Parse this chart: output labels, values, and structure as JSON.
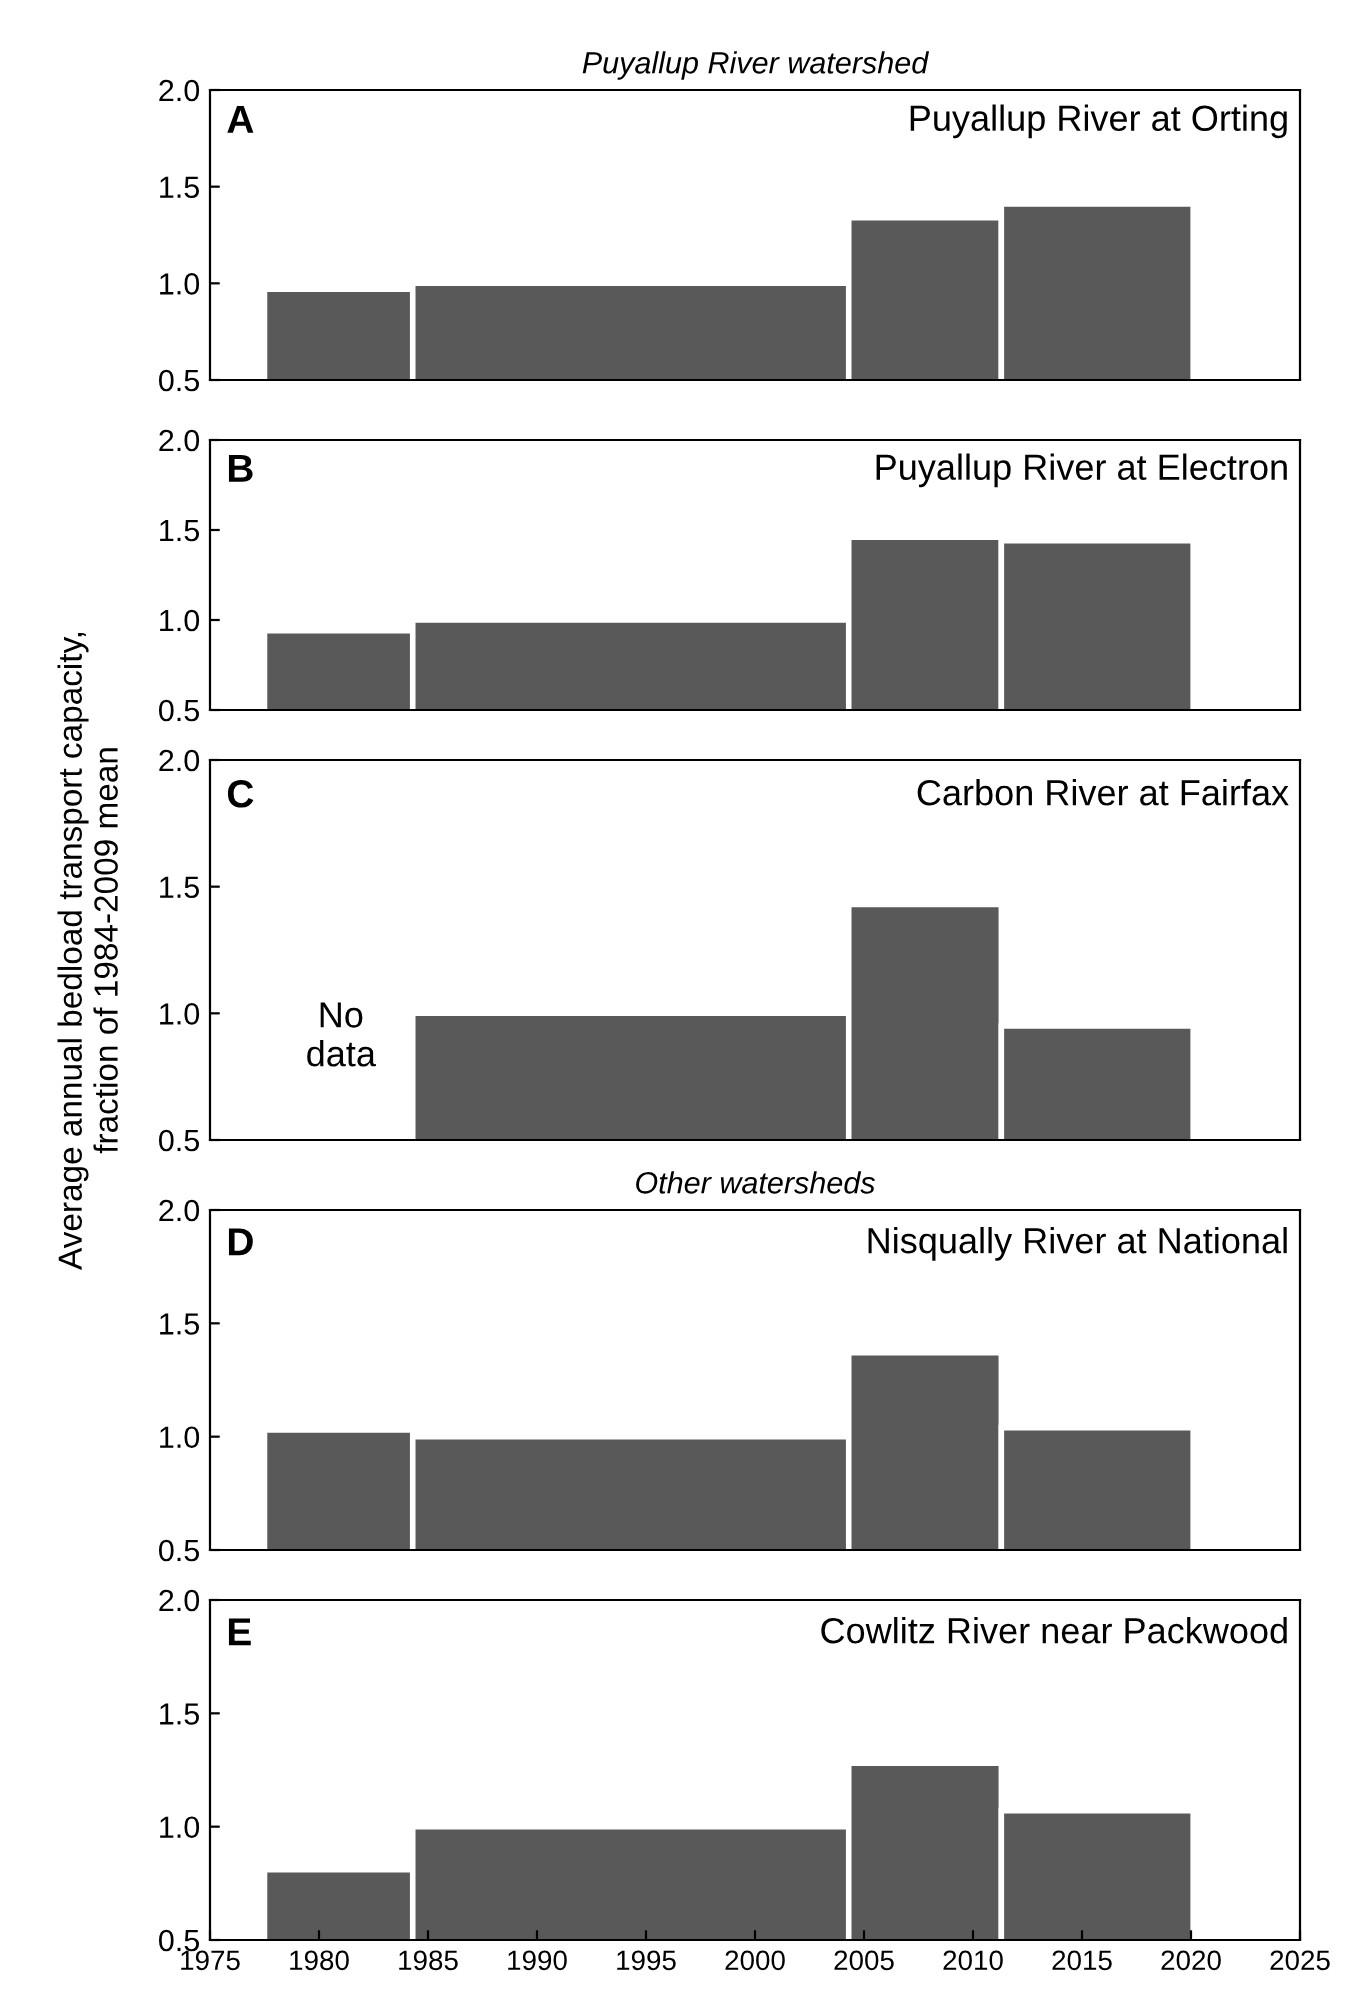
{
  "chart_data": [
    {
      "type": "histogram",
      "title": "Puyallup River watershed",
      "bins": [
        1977.5,
        1984.3,
        2004.3,
        2011.3,
        2020.1
      ],
      "values": [
        0.97,
        1.0,
        1.34,
        1.41
      ],
      "color": "#595959",
      "xlim": [
        1975,
        2025
      ],
      "ylim": [
        0.5,
        2.0
      ],
      "yticks": [
        {
          "value": 0.5,
          "label": "0.5"
        },
        {
          "value": 1.0,
          "label": "1.0"
        },
        {
          "value": 1.5,
          "label": "1.5"
        },
        {
          "value": 2.0,
          "label": "2.0"
        }
      ],
      "tick_labels": "y",
      "annotations": [
        "A",
        "Puyallup River at Orting"
      ]
    },
    {
      "type": "histogram",
      "bins": [
        1977.5,
        1984.3,
        2004.3,
        2011.3,
        2020.1
      ],
      "values": [
        0.94,
        1.0,
        1.46,
        1.44
      ],
      "color": "#595959",
      "xlim": [
        1975,
        2025
      ],
      "ylim": [
        0.5,
        2.0
      ],
      "yticks": [
        {
          "value": 0.5,
          "label": "0.5"
        },
        {
          "value": 1.0,
          "label": "1.0"
        },
        {
          "value": 1.5,
          "label": "1.5"
        },
        {
          "value": 2.0,
          "label": "2.0"
        }
      ],
      "tick_labels": "y",
      "annotations": [
        "B",
        "Puyallup River at Electron"
      ]
    },
    {
      "type": "histogram",
      "ylabel": "Average annual bedload transport capacity,\nfraction of 1984-2009 mean",
      "bins": [
        1984.3,
        2004.3,
        2011.3,
        2020.1
      ],
      "values": [
        1.0,
        1.43,
        0.95
      ],
      "color": "#595959",
      "xlim": [
        1975,
        2025
      ],
      "ylim": [
        0.5,
        2.0
      ],
      "yticks": [
        {
          "value": 0.5,
          "label": "0.5"
        },
        {
          "value": 1.0,
          "label": "1.0"
        },
        {
          "value": 1.5,
          "label": "1.5"
        },
        {
          "value": 2.0,
          "label": "2.0"
        }
      ],
      "tick_labels": "y",
      "annotations": [
        "C",
        "Carbon River at Fairfax",
        "No\ndata"
      ]
    },
    {
      "type": "histogram",
      "title": "Other watersheds",
      "bins": [
        1977.5,
        1984.3,
        2004.3,
        2011.3,
        2020.1
      ],
      "values": [
        1.03,
        1.0,
        1.37,
        1.04
      ],
      "color": "#595959",
      "xlim": [
        1975,
        2025
      ],
      "ylim": [
        0.5,
        2.0
      ],
      "yticks": [
        {
          "value": 0.5,
          "label": "0.5"
        },
        {
          "value": 1.0,
          "label": "1.0"
        },
        {
          "value": 1.5,
          "label": "1.5"
        },
        {
          "value": 2.0,
          "label": "2.0"
        }
      ],
      "tick_labels": "y",
      "annotations": [
        "D",
        "Nisqually River at National"
      ]
    },
    {
      "type": "histogram",
      "bins": [
        1977.5,
        1984.3,
        2004.3,
        2011.3,
        2020.1
      ],
      "values": [
        0.81,
        1.0,
        1.28,
        1.07
      ],
      "color": "#595959",
      "xlim": [
        1975,
        2025
      ],
      "xticks": [
        1975,
        1980,
        1985,
        1990,
        1995,
        2000,
        2005,
        2010,
        2015,
        2020,
        2025
      ],
      "ylim": [
        0.5,
        2.0
      ],
      "yticks": [
        {
          "value": 0.5,
          "label": "0.5"
        },
        {
          "value": 1.0,
          "label": "1.0"
        },
        {
          "value": 1.5,
          "label": "1.5"
        },
        {
          "value": 2.0,
          "label": "2.0"
        }
      ],
      "annotations": [
        "E",
        "Cowlitz River near Packwood"
      ]
    }
  ]
}
